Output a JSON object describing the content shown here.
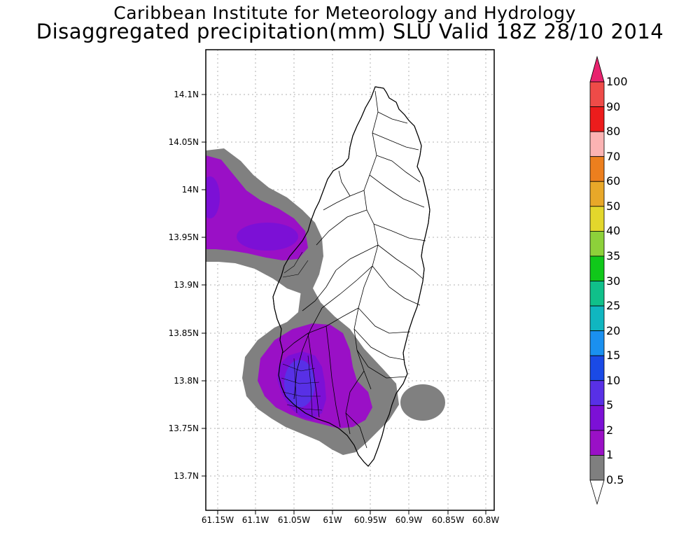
{
  "title": {
    "line1": "Caribbean Institute for Meteorology and Hydrology",
    "line2": "Disaggregated precipitation(mm) SLU Valid 18Z 28/10 2014"
  },
  "axes": {
    "lat_labels": [
      "14.1N",
      "14.05N",
      "14N",
      "13.95N",
      "13.9N",
      "13.85N",
      "13.8N",
      "13.75N",
      "13.7N"
    ],
    "lon_labels": [
      "61.15W",
      "61.1W",
      "61.05W",
      "61W",
      "60.95W",
      "60.9W",
      "60.85W",
      "60.8W"
    ]
  },
  "colorbar": {
    "labels": [
      "100",
      "90",
      "80",
      "70",
      "60",
      "50",
      "40",
      "35",
      "30",
      "25",
      "20",
      "15",
      "10",
      "5",
      "2",
      "1",
      "0.5"
    ],
    "colors": [
      "#e8236e",
      "#ee4b48",
      "#ec1c1c",
      "#fbb3b3",
      "#ec7f1e",
      "#e8a829",
      "#e3d72c",
      "#8dd13a",
      "#10c81a",
      "#10c08a",
      "#10b6c0",
      "#1a90f0",
      "#1a4ae6",
      "#5830e6",
      "#7c10d6",
      "#9a10c6",
      "#7f7f7f"
    ],
    "colors_note": "ordered top to bottom; top triangle uses first color, bottom triangle is white"
  },
  "map": {
    "region": "Saint Lucia",
    "fill_colors": {
      "land": "#ffffff",
      "grey_0_5_to_1": "#808080",
      "purple_1_to_2": "#9a10c6",
      "violet_2_to_5": "#7c10d6",
      "blue_5_to_10": "#5830e6"
    }
  }
}
